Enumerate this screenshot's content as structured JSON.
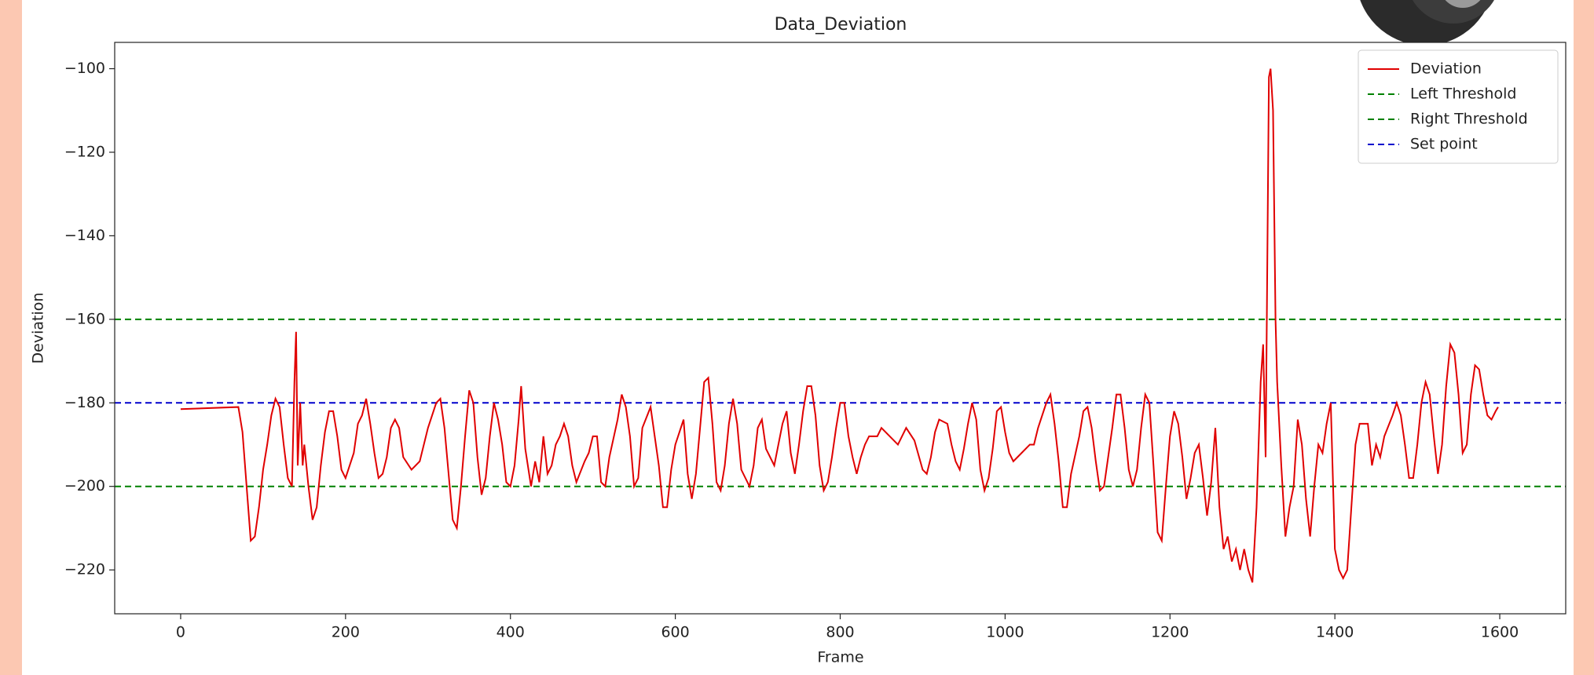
{
  "chart_data": {
    "type": "line",
    "title": "Data_Deviation",
    "x_label": "Frame",
    "y_label": "Deviation",
    "legend": "upper right",
    "grid": false,
    "xlim": [
      -80,
      1680
    ],
    "ylim": [
      -230.5,
      -93.7
    ],
    "xticks": [
      0,
      200,
      400,
      600,
      800,
      1000,
      1200,
      1400,
      1600
    ],
    "yticks": [
      {
        "value": -220,
        "label": "−220"
      },
      {
        "value": -200,
        "label": "−200"
      },
      {
        "value": -180,
        "label": "−180"
      },
      {
        "value": -160,
        "label": "−160"
      },
      {
        "value": -140,
        "label": "−140"
      },
      {
        "value": -120,
        "label": "−120"
      },
      {
        "value": -100,
        "label": "−100"
      }
    ],
    "series": [
      {
        "name": "Deviation",
        "color": "#e00000",
        "x": [
          0,
          70,
          75,
          80,
          85,
          90,
          95,
          100,
          105,
          110,
          115,
          120,
          125,
          130,
          135,
          138,
          140,
          142,
          145,
          148,
          150,
          155,
          160,
          165,
          170,
          175,
          180,
          185,
          190,
          195,
          200,
          205,
          210,
          215,
          220,
          225,
          230,
          235,
          240,
          245,
          250,
          255,
          260,
          265,
          270,
          280,
          290,
          300,
          310,
          315,
          320,
          330,
          335,
          340,
          345,
          350,
          355,
          360,
          365,
          370,
          375,
          380,
          385,
          390,
          395,
          400,
          405,
          410,
          413,
          418,
          425,
          430,
          435,
          440,
          445,
          450,
          455,
          460,
          465,
          470,
          475,
          480,
          490,
          495,
          500,
          505,
          510,
          515,
          520,
          530,
          535,
          540,
          545,
          550,
          555,
          560,
          570,
          580,
          585,
          590,
          595,
          600,
          605,
          610,
          615,
          620,
          625,
          630,
          635,
          640,
          645,
          650,
          655,
          660,
          665,
          670,
          675,
          680,
          690,
          695,
          700,
          705,
          710,
          720,
          730,
          735,
          740,
          745,
          750,
          755,
          760,
          765,
          770,
          775,
          780,
          785,
          790,
          795,
          800,
          805,
          810,
          815,
          820,
          825,
          830,
          835,
          840,
          845,
          850,
          860,
          870,
          880,
          890,
          900,
          905,
          910,
          915,
          920,
          930,
          935,
          940,
          945,
          950,
          955,
          960,
          965,
          970,
          975,
          980,
          985,
          990,
          995,
          1000,
          1005,
          1010,
          1020,
          1030,
          1035,
          1040,
          1050,
          1055,
          1060,
          1065,
          1070,
          1075,
          1080,
          1090,
          1095,
          1100,
          1105,
          1110,
          1115,
          1120,
          1125,
          1130,
          1135,
          1140,
          1145,
          1150,
          1155,
          1160,
          1165,
          1170,
          1175,
          1180,
          1185,
          1190,
          1195,
          1200,
          1205,
          1210,
          1215,
          1220,
          1225,
          1230,
          1235,
          1240,
          1245,
          1250,
          1255,
          1260,
          1265,
          1270,
          1275,
          1280,
          1285,
          1290,
          1295,
          1300,
          1305,
          1310,
          1313,
          1316,
          1320,
          1322,
          1325,
          1328,
          1330,
          1335,
          1340,
          1345,
          1350,
          1355,
          1360,
          1365,
          1370,
          1375,
          1380,
          1385,
          1390,
          1395,
          1400,
          1405,
          1410,
          1415,
          1420,
          1425,
          1430,
          1440,
          1445,
          1450,
          1455,
          1460,
          1470,
          1475,
          1480,
          1485,
          1490,
          1495,
          1500,
          1505,
          1510,
          1515,
          1520,
          1525,
          1530,
          1535,
          1540,
          1545,
          1550,
          1555,
          1560,
          1565,
          1570,
          1575,
          1580,
          1585,
          1590,
          1595,
          1598
        ],
        "values": [
          -181.5,
          -181,
          -187,
          -200,
          -213,
          -212,
          -205,
          -196,
          -190,
          -183,
          -179,
          -181,
          -190,
          -198,
          -200,
          -175,
          -163,
          -195,
          -180,
          -195,
          -190,
          -200,
          -208,
          -205,
          -195,
          -187,
          -182,
          -182,
          -188,
          -196,
          -198,
          -195,
          -192,
          -185,
          -183,
          -179,
          -185,
          -192,
          -198,
          -197,
          -193,
          -186,
          -184,
          -186,
          -193,
          -196,
          -194,
          -186,
          -180,
          -179,
          -186,
          -208,
          -210,
          -200,
          -188,
          -177,
          -180,
          -193,
          -202,
          -198,
          -188,
          -180,
          -184,
          -190,
          -199,
          -200,
          -195,
          -184,
          -176,
          -191,
          -200,
          -194,
          -199,
          -188,
          -197,
          -195,
          -190,
          -188,
          -185,
          -188,
          -195,
          -199,
          -194,
          -192,
          -188,
          -188,
          -199,
          -200,
          -193,
          -184,
          -178,
          -181,
          -188,
          -200,
          -198,
          -186,
          -181,
          -195,
          -205,
          -205,
          -196,
          -190,
          -187,
          -184,
          -197,
          -203,
          -197,
          -186,
          -175,
          -174,
          -185,
          -199,
          -201,
          -195,
          -185,
          -179,
          -185,
          -196,
          -200,
          -195,
          -186,
          -184,
          -191,
          -195,
          -185,
          -182,
          -192,
          -197,
          -190,
          -182,
          -176,
          -176,
          -183,
          -195,
          -201,
          -199,
          -193,
          -186,
          -180,
          -180,
          -188,
          -193,
          -197,
          -193,
          -190,
          -188,
          -188,
          -188,
          -186,
          -188,
          -190,
          -186,
          -189,
          -196,
          -197,
          -193,
          -187,
          -184,
          -185,
          -190,
          -194,
          -196,
          -191,
          -185,
          -180,
          -184,
          -196,
          -201,
          -198,
          -191,
          -182,
          -181,
          -187,
          -192,
          -194,
          -192,
          -190,
          -190,
          -186,
          -180,
          -178,
          -185,
          -194,
          -205,
          -205,
          -197,
          -188,
          -182,
          -181,
          -186,
          -194,
          -201,
          -200,
          -193,
          -186,
          -178,
          -178,
          -186,
          -196,
          -200,
          -196,
          -186,
          -178,
          -180,
          -195,
          -211,
          -213,
          -200,
          -188,
          -182,
          -185,
          -193,
          -203,
          -198,
          -192,
          -190,
          -198,
          -207,
          -199,
          -186,
          -205,
          -215,
          -212,
          -218,
          -215,
          -220,
          -215,
          -220,
          -223,
          -205,
          -175,
          -166,
          -193,
          -102,
          -100,
          -110,
          -160,
          -175,
          -195,
          -212,
          -205,
          -200,
          -184,
          -190,
          -203,
          -212,
          -200,
          -190,
          -192,
          -185,
          -180,
          -215,
          -220,
          -222,
          -220,
          -205,
          -190,
          -185,
          -185,
          -195,
          -190,
          -193,
          -188,
          -183,
          -180,
          -183,
          -190,
          -198,
          -198,
          -190,
          -180,
          -175,
          -178,
          -188,
          -197,
          -190,
          -176,
          -166,
          -168,
          -178,
          -192,
          -190,
          -178,
          -171,
          -172,
          -178,
          -183,
          -184,
          -182,
          -181
        ]
      }
    ],
    "reference_lines": [
      {
        "name": "Left Threshold",
        "color": "#008000",
        "value": -160
      },
      {
        "name": "Right Threshold",
        "color": "#008000",
        "value": -200
      },
      {
        "name": "Set point",
        "color": "#0000cc",
        "value": -180
      }
    ]
  }
}
